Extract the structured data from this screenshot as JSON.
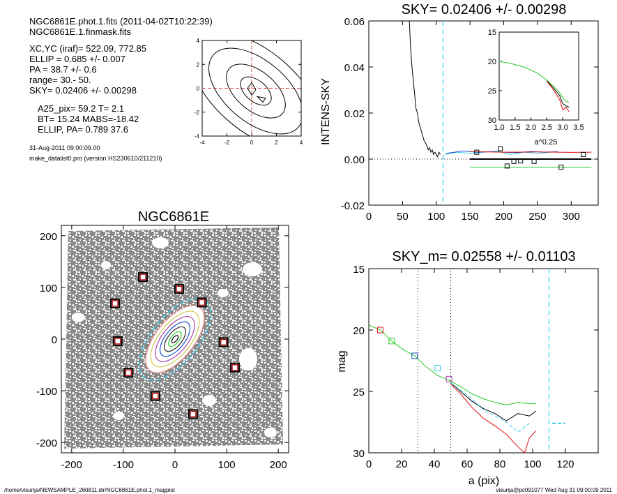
{
  "info": {
    "file_line": "NGC6861E.phot.1.fits  (2011-04-02T10:22:39)",
    "mask_line": "NGC6861E.1.finmask.fits",
    "center_line": "XC,YC (iraf)=   522.09, 772.85",
    "ellip_line": "ELLIP = 0.685 +/- 0.007",
    "pa_line": "PA    =  38.7 +/-   0.6",
    "range_line": "range=   30.-   50.",
    "sky_line": "SKY= 0.02406 +/- 0.00298",
    "a25_line": "A25_pix= 59.2   T= 2.1",
    "bt_line": "BT=  15.24   MABS=-18.42",
    "ellip_pa_line": "ELLIP, PA= 0.789   37.6",
    "date_line": "31-Aug-2011 09:00:09.00",
    "program_line": "make_datalist0.pro (version HS230610/211210)"
  },
  "footer": {
    "path": "/home/visurija/NEWSAMPLE_260811.dir/NGC6861E.phot.1_magplot",
    "user_stamp": "visurija@pc091077  Wed Aug 31 09:00:09 2011"
  },
  "colors": {
    "black": "#000000",
    "red": "#e01010",
    "green": "#22cc22",
    "blue": "#1a4fd0",
    "cyan": "#33ccee",
    "purple": "#aa44aa",
    "pink": "#ee8888",
    "marker": "#b01010"
  },
  "chart_data": [
    {
      "type": "line",
      "panel": "contour-inset",
      "title": "",
      "xlim": [
        -4,
        4
      ],
      "ylim": [
        -4,
        4
      ],
      "xticks": [
        -4,
        -2,
        0,
        2,
        4
      ],
      "yticks": [
        -4,
        -2,
        0,
        2,
        4
      ],
      "crosshair": [
        0,
        0
      ]
    },
    {
      "type": "line",
      "panel": "sky-profile",
      "title": "SKY= 0.02406 +/- 0.00298",
      "xlabel": "",
      "ylabel": "INTENS-SKY",
      "xlim": [
        0,
        340
      ],
      "ylim": [
        -0.02,
        0.06
      ],
      "xticks": [
        0,
        50,
        100,
        150,
        200,
        250,
        300
      ],
      "yticks": [
        -0.02,
        0.0,
        0.02,
        0.04,
        0.06
      ],
      "ytick_labels": [
        "-0.02",
        "0.00",
        "0.02",
        "0.04",
        "0.06"
      ],
      "vline_x": 110,
      "series": [
        {
          "color": "black",
          "x": [
            60,
            62,
            64,
            66,
            68,
            70,
            72,
            74,
            76,
            78,
            80,
            82,
            84,
            86,
            88,
            90,
            92,
            94,
            96,
            98,
            100,
            102,
            104,
            106
          ],
          "y": [
            0.06,
            0.048,
            0.04,
            0.034,
            0.028,
            0.022,
            0.02,
            0.016,
            0.014,
            0.012,
            0.01,
            0.008,
            0.007,
            0.006,
            0.004,
            0.005,
            0.003,
            0.004,
            0.002,
            0.003,
            0.002,
            0.001,
            0.003,
            0.002
          ]
        },
        {
          "color": "cyan",
          "x": [
            112,
            130,
            150,
            170,
            190,
            210,
            230,
            250,
            270
          ],
          "y": [
            0.002,
            0.003,
            0.0025,
            0.003,
            0.0035,
            0.002,
            0.003,
            0.0025,
            0.003
          ]
        },
        {
          "color": "blue",
          "x": [
            115,
            140,
            160,
            180,
            200,
            220,
            240,
            260,
            280
          ],
          "y": [
            0.0025,
            0.0035,
            0.003,
            0.0032,
            0.003,
            0.0028,
            0.0033,
            0.003,
            0.0032
          ]
        },
        {
          "color": "red",
          "x": [
            150,
            200,
            250,
            300,
            330
          ],
          "y": [
            0.0032,
            0.003,
            0.0031,
            0.0029,
            0.003
          ]
        },
        {
          "color": "green",
          "x": [
            150,
            200,
            250,
            300,
            330
          ],
          "y": [
            -0.0035,
            -0.0035,
            -0.0035,
            -0.0035,
            -0.0035
          ]
        },
        {
          "color": "black",
          "x": [
            150,
            330
          ],
          "y": [
            0.0,
            0.0
          ],
          "bold": true
        }
      ],
      "markers": {
        "x": [
          160,
          195,
          205,
          215,
          225,
          245,
          285,
          318
        ],
        "y": [
          0.003,
          0.0045,
          -0.003,
          -0.001,
          -0.0008,
          -0.001,
          -0.0035,
          0.002
        ]
      }
    },
    {
      "type": "line",
      "panel": "sky-inset",
      "xlabel": "a^0.25",
      "xlim": [
        1.0,
        3.5
      ],
      "ylim": [
        15,
        30
      ],
      "y_inverted": true,
      "xticks": [
        1.0,
        1.5,
        2.0,
        2.5,
        3.0,
        3.5
      ],
      "xtick_labels": [
        "1.0",
        "1.5",
        "2.0",
        "2.5",
        "3.0",
        "3.5"
      ],
      "yticks": [
        15,
        20,
        25,
        30
      ],
      "series": [
        {
          "color": "green",
          "x": [
            1.0,
            1.4,
            1.8,
            2.2,
            2.5,
            2.7,
            2.9,
            3.0,
            3.1,
            3.2
          ],
          "y": [
            20.0,
            20.4,
            21.0,
            22.0,
            23.2,
            24.2,
            25.3,
            26.2,
            26.8,
            27.0
          ]
        },
        {
          "color": "black",
          "x": [
            2.5,
            2.7,
            2.9,
            3.0,
            3.1,
            3.2
          ],
          "y": [
            23.3,
            24.5,
            25.8,
            27.2,
            27.6,
            27.8
          ]
        },
        {
          "color": "red",
          "x": [
            2.5,
            2.7,
            2.9,
            3.0,
            3.1,
            3.2
          ],
          "y": [
            23.4,
            24.8,
            26.5,
            28.3,
            27.8,
            28.6
          ]
        }
      ]
    },
    {
      "type": "scatter",
      "panel": "galaxy-image",
      "title": "NGC6861E",
      "xlim": [
        -220,
        220
      ],
      "ylim": [
        -220,
        220
      ],
      "xticks": [
        -200,
        -100,
        0,
        100,
        200
      ],
      "yticks": [
        -200,
        -100,
        0,
        100,
        200
      ],
      "ellipse": {
        "cx": 0,
        "cy": 0,
        "a_outer": 95,
        "b_outer": 45,
        "pa_deg": 38.7
      },
      "markers": {
        "x": [
          -62,
          8,
          52,
          -116,
          -111,
          94,
          -90,
          116,
          -38,
          35
        ],
        "y": [
          120,
          97,
          71,
          69,
          -4,
          -6,
          -65,
          -55,
          -110,
          -145
        ]
      }
    },
    {
      "type": "line",
      "panel": "mag-profile",
      "title": "SKY_m=  0.02558 +/- 0.01103",
      "xlabel": "a (pix)",
      "ylabel": "mag",
      "xlim": [
        0,
        140
      ],
      "ylim": [
        15,
        30
      ],
      "y_inverted": true,
      "xticks": [
        0,
        20,
        40,
        60,
        80,
        100,
        120
      ],
      "yticks": [
        15,
        20,
        25,
        30
      ],
      "vlines_dotted": [
        30,
        50
      ],
      "vline_dashed": 110,
      "series": [
        {
          "color": "green",
          "x": [
            0,
            7,
            14,
            21,
            28,
            35,
            42,
            49,
            56,
            63,
            70,
            77,
            84,
            91,
            98,
            102
          ],
          "y": [
            19.6,
            20.0,
            20.9,
            21.6,
            22.1,
            23.0,
            23.7,
            24.1,
            24.6,
            25.2,
            25.6,
            25.9,
            26.1,
            25.9,
            26.0,
            26.0
          ]
        },
        {
          "color": "black",
          "x": [
            50,
            56,
            63,
            70,
            77,
            84,
            91,
            98,
            102
          ],
          "y": [
            24.3,
            25.0,
            25.8,
            26.4,
            26.8,
            27.4,
            26.8,
            27.0,
            26.6
          ]
        },
        {
          "color": "red",
          "x": [
            50,
            56,
            63,
            70,
            77,
            84,
            91,
            95,
            98,
            102
          ],
          "y": [
            24.4,
            25.2,
            26.3,
            27.2,
            27.8,
            28.5,
            29.5,
            30.0,
            28.8,
            28.2
          ]
        },
        {
          "color": "cyan",
          "x": [
            50,
            63,
            70,
            77,
            84,
            91,
            98
          ],
          "y": [
            24.3,
            25.6,
            26.5,
            27.0,
            27.5,
            28.3,
            27.6
          ]
        },
        {
          "color": "cyan",
          "x": [
            112,
            120
          ],
          "y": [
            27.6,
            27.6
          ]
        }
      ],
      "markers": {
        "x": [
          7,
          14,
          28,
          42,
          49
        ],
        "y": [
          20.0,
          20.9,
          22.1,
          23.1,
          24.0
        ],
        "colors": [
          "red",
          "green",
          "blue",
          "cyan",
          "purple"
        ]
      }
    }
  ]
}
